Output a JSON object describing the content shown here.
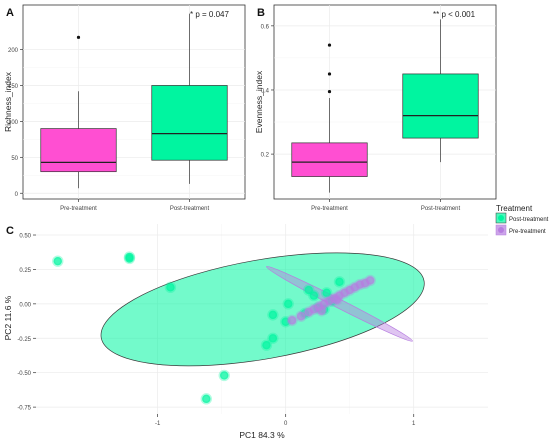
{
  "panels": {
    "a": {
      "label": "A",
      "chart_data": {
        "type": "box",
        "categories": [
          "Pre-treatment",
          "Post-treatment"
        ],
        "ylabel": "Richness_index",
        "yticks": [
          0,
          50,
          100,
          150,
          200
        ],
        "ylim": [
          -8,
          262
        ],
        "annotation": "* p = 0.047",
        "boxes": [
          {
            "category": "Pre-treatment",
            "min": 7,
            "q1": 30,
            "median": 43,
            "q3": 90,
            "max": 142,
            "outliers": [
              217
            ],
            "color": "#ff4fd2"
          },
          {
            "category": "Post-treatment",
            "min": 13,
            "q1": 46,
            "median": 83,
            "q3": 150,
            "max": 250,
            "outliers": [],
            "color": "#00f5a0"
          }
        ]
      }
    },
    "b": {
      "label": "B",
      "chart_data": {
        "type": "box",
        "categories": [
          "Pre-treatment",
          "Post-treatment"
        ],
        "ylabel": "Evenness_index",
        "yticks": [
          0.2,
          0.4,
          0.6
        ],
        "ytick_labels": [
          "0.2",
          "0.4",
          "0.6"
        ],
        "ylim": [
          0.06,
          0.665
        ],
        "annotation": "** p < 0.001",
        "boxes": [
          {
            "category": "Pre-treatment",
            "min": 0.08,
            "q1": 0.13,
            "median": 0.175,
            "q3": 0.235,
            "max": 0.375,
            "outliers": [
              0.395,
              0.45,
              0.54
            ],
            "color": "#ff4fd2"
          },
          {
            "category": "Post-treatment",
            "min": 0.175,
            "q1": 0.25,
            "median": 0.32,
            "q3": 0.45,
            "max": 0.62,
            "outliers": [],
            "color": "#00f5a0"
          }
        ]
      }
    },
    "c": {
      "label": "C",
      "chart_data": {
        "type": "scatter",
        "xlabel": "PC1 84.3 %",
        "ylabel": "PC2 11.6 %",
        "xticks": [
          -1,
          0,
          1
        ],
        "yticks": [
          0.5,
          0.25,
          0.0,
          -0.25,
          -0.5,
          -0.75
        ],
        "ytick_labels": [
          "0.50",
          "0.25",
          "0.00",
          "-0.25",
          "-0.50",
          "-0.75"
        ],
        "xlim": [
          -1.95,
          1.58
        ],
        "ylim": [
          -0.8,
          0.58
        ],
        "legend_title": "Treatment",
        "legend_position": "right",
        "series": [
          {
            "name": "Post-treatment",
            "color": "#00f5a0",
            "ellipse": {
              "cx": -0.18,
              "cy": -0.04,
              "rx": 1.28,
              "ry": 0.36,
              "angle_deg": -10
            },
            "points": [
              [
                -1.78,
                0.31
              ],
              [
                -1.22,
                0.34
              ],
              [
                -1.22,
                0.33
              ],
              [
                -0.9,
                0.12
              ],
              [
                -0.48,
                -0.52
              ],
              [
                -0.62,
                -0.69
              ],
              [
                -0.1,
                -0.08
              ],
              [
                0.02,
                0.0
              ],
              [
                -0.15,
                -0.3
              ],
              [
                -0.1,
                -0.25
              ],
              [
                0.0,
                -0.13
              ],
              [
                0.15,
                -0.07
              ],
              [
                0.18,
                0.1
              ],
              [
                0.22,
                0.06
              ],
              [
                0.32,
                0.08
              ],
              [
                0.42,
                0.16
              ],
              [
                0.25,
                -0.03
              ],
              [
                0.3,
                -0.04
              ],
              [
                0.36,
                0.02
              ]
            ]
          },
          {
            "name": "Pre-treatment",
            "color": "#b77ee0",
            "ellipse": {
              "cx": 0.42,
              "cy": 0.0,
              "rx": 0.64,
              "ry": 0.032,
              "angle_deg": 27
            },
            "points": [
              [
                0.05,
                -0.12
              ],
              [
                0.12,
                -0.09
              ],
              [
                0.18,
                -0.06
              ],
              [
                0.22,
                -0.04
              ],
              [
                0.26,
                -0.02
              ],
              [
                0.3,
                0.0
              ],
              [
                0.34,
                0.02
              ],
              [
                0.38,
                0.04
              ],
              [
                0.42,
                0.06
              ],
              [
                0.46,
                0.08
              ],
              [
                0.5,
                0.1
              ],
              [
                0.54,
                0.12
              ],
              [
                0.58,
                0.14
              ],
              [
                0.62,
                0.15
              ],
              [
                0.66,
                0.17
              ],
              [
                0.28,
                -0.05
              ],
              [
                0.4,
                0.03
              ]
            ]
          }
        ]
      }
    }
  }
}
